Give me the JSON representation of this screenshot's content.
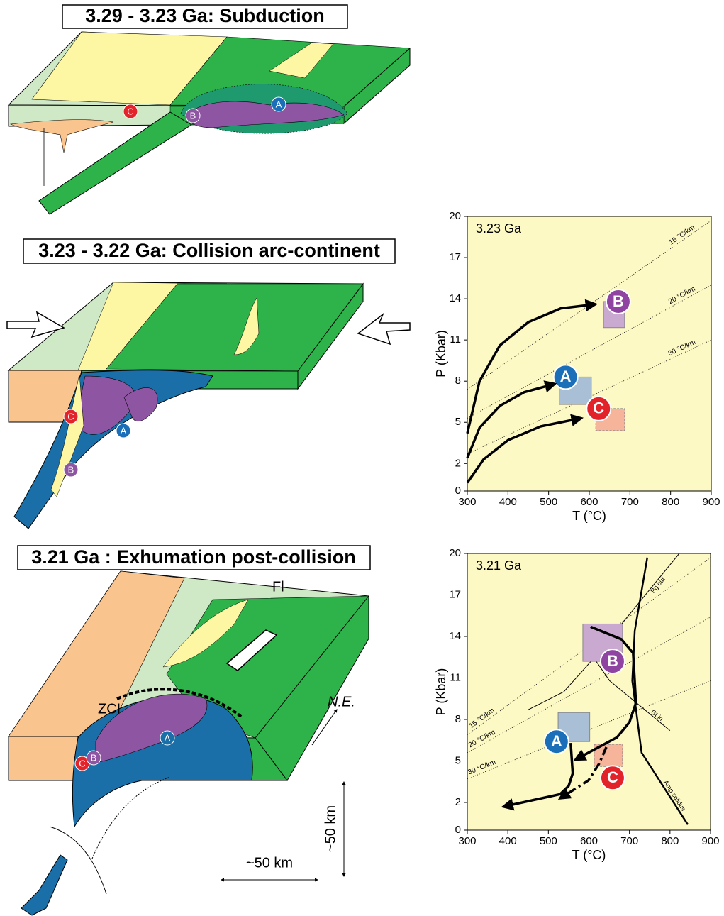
{
  "panels": [
    {
      "title": "3.29 - 3.23 Ga: Subduction",
      "markers": [
        "C",
        "B",
        "A"
      ]
    },
    {
      "title": "3.23 - 3.22 Ga: Collision arc-continent",
      "markers": [
        "C",
        "A",
        "B"
      ]
    },
    {
      "title": "3.21 Ga : Exhumation post-collision",
      "markers": [
        "C",
        "B",
        "A"
      ],
      "annotations": [
        "ZCI",
        "Fl",
        "N.E."
      ],
      "scale_labels": [
        "~50 km",
        "~50 km"
      ]
    }
  ],
  "pt_plots": [
    {
      "label": "3.23 Ga",
      "x_label": "T (°C)",
      "y_label": "P (Kbar)",
      "xlim": [
        300,
        900
      ],
      "xticks": [
        300,
        400,
        500,
        600,
        700,
        800,
        900
      ],
      "ylim": [
        0,
        20
      ],
      "yticks": [
        0,
        2,
        5,
        8,
        11,
        14,
        17,
        20
      ],
      "geotherms": [
        {
          "label": "15 °C/km",
          "t": [
            300,
            900
          ],
          "p": [
            7.4,
            19.7
          ]
        },
        {
          "label": "20 °C/km",
          "t": [
            300,
            900
          ],
          "p": [
            5.3,
            15
          ]
        },
        {
          "label": "30 °C/km",
          "t": [
            300,
            900
          ],
          "p": [
            2.7,
            11
          ]
        }
      ],
      "curves": [],
      "boxes": [
        {
          "label": "B",
          "color": "#c9a9cf",
          "label_color": "#8e44a0",
          "dashed": false,
          "t": [
            635,
            687
          ],
          "p": [
            11.9,
            13.8
          ]
        },
        {
          "label": "A",
          "color": "#a9bfd6",
          "label_color": "#1a6fb8",
          "dashed": false,
          "t": [
            526,
            605
          ],
          "p": [
            6.3,
            8.3
          ]
        },
        {
          "label": "C",
          "color": "#f6b59a",
          "label_color": "#e2232a",
          "dashed": true,
          "t": [
            616,
            687
          ],
          "p": [
            4.4,
            6.0
          ]
        }
      ],
      "paths": [
        {
          "style": "solid",
          "t": [
            300,
            330,
            380,
            450,
            530,
            615
          ],
          "p": [
            4.2,
            8,
            10.6,
            12.3,
            13.3,
            13.6
          ]
        },
        {
          "style": "solid",
          "t": [
            300,
            330,
            380,
            440,
            515
          ],
          "p": [
            2.4,
            4.6,
            6.2,
            7.2,
            7.8
          ]
        },
        {
          "style": "solid",
          "t": [
            300,
            340,
            400,
            480,
            580
          ],
          "p": [
            0.6,
            2.3,
            3.7,
            4.7,
            5.3
          ]
        }
      ]
    },
    {
      "label": "3.21 Ga",
      "x_label": "T (°C)",
      "y_label": "P (Kbar)",
      "xlim": [
        300,
        900
      ],
      "xticks": [
        300,
        400,
        500,
        600,
        700,
        800,
        900
      ],
      "ylim": [
        0,
        20
      ],
      "yticks": [
        0,
        2,
        5,
        8,
        11,
        14,
        17,
        20
      ],
      "geotherms": [
        {
          "label": "15 °C/km",
          "t": [
            300,
            900
          ],
          "p": [
            6.9,
            19.7
          ]
        },
        {
          "label": "20 °C/km",
          "t": [
            300,
            900
          ],
          "p": [
            5.6,
            15.4
          ]
        },
        {
          "label": "30 °C/km",
          "t": [
            300,
            900
          ],
          "p": [
            3.7,
            10.8
          ]
        }
      ],
      "curves": [
        {
          "label": "Amp solidus",
          "line_width": 2.5,
          "t": [
            744,
            713,
            707,
            730,
            844
          ],
          "p": [
            19.7,
            14.4,
            10.8,
            5.6,
            0.4
          ]
        },
        {
          "label": "Pg out",
          "line_width": 1,
          "t": [
            823,
            608,
            538,
            450
          ],
          "p": [
            20,
            12.3,
            10,
            8.7
          ]
        },
        {
          "label": "Gt in",
          "line_width": 1,
          "t": [
            585,
            651,
            800
          ],
          "p": [
            13.6,
            10.8,
            7.2
          ]
        }
      ],
      "boxes": [
        {
          "label": "B",
          "color": "#c9a9cf",
          "label_color": "#8e44a0",
          "dashed": false,
          "t": [
            585,
            683
          ],
          "p": [
            12.2,
            14.9
          ]
        },
        {
          "label": "A",
          "color": "#a9bfd6",
          "label_color": "#1a6fb8",
          "dashed": false,
          "t": [
            524,
            602
          ],
          "p": [
            6.4,
            8.5
          ]
        },
        {
          "label": "C",
          "color": "#f6b59a",
          "label_color": "#e2232a",
          "dashed": true,
          "t": [
            613,
            683
          ],
          "p": [
            4.6,
            6.2
          ]
        }
      ],
      "paths": [
        {
          "style": "solid",
          "t": [
            604,
            680,
            709,
            716,
            700,
            669,
            567
          ],
          "p": [
            14.7,
            13.8,
            12.8,
            9.2,
            7.8,
            6.7,
            5.1
          ]
        },
        {
          "style": "solid",
          "t": [
            555,
            560,
            550,
            529,
            389
          ],
          "p": [
            6.3,
            4.1,
            3.2,
            2.6,
            1.7
          ]
        },
        {
          "style": "dashdot",
          "t": [
            643,
            625,
            599,
            529
          ],
          "p": [
            6.0,
            4.8,
            3.6,
            2.3
          ]
        }
      ]
    }
  ]
}
